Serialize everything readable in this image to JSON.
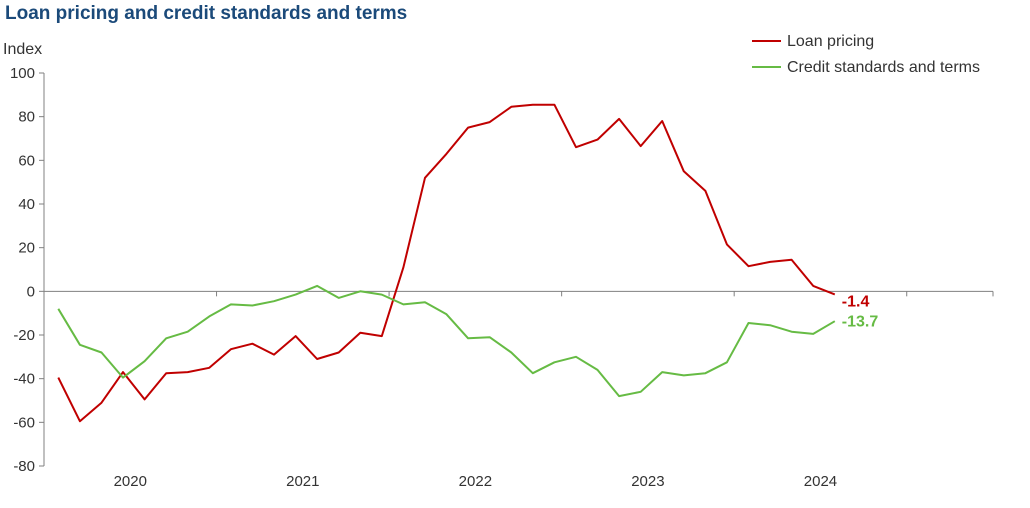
{
  "chart_data": {
    "type": "line",
    "title": "Loan pricing and credit standards and terms",
    "ylabel": "Index",
    "xlabel": "",
    "ylim": [
      -80,
      100
    ],
    "yticks": [
      100,
      80,
      60,
      40,
      20,
      0,
      -20,
      -40,
      -60,
      -80
    ],
    "xlim": [
      2019.5,
      2025.0
    ],
    "x_tick_labels": [
      {
        "label": "2020",
        "x": 2020.0
      },
      {
        "label": "2021",
        "x": 2021.0
      },
      {
        "label": "2022",
        "x": 2022.0
      },
      {
        "label": "2023",
        "x": 2023.0
      },
      {
        "label": "2024",
        "x": 2024.0
      }
    ],
    "year_boundaries": [
      2019.5,
      2020.5,
      2021.5,
      2022.5,
      2023.5,
      2024.5,
      2025.0
    ],
    "x": [
      2019.583,
      2019.708,
      2019.833,
      2019.958,
      2020.083,
      2020.208,
      2020.333,
      2020.458,
      2020.583,
      2020.708,
      2020.833,
      2020.958,
      2021.083,
      2021.208,
      2021.333,
      2021.458,
      2021.583,
      2021.708,
      2021.833,
      2021.958,
      2022.083,
      2022.208,
      2022.333,
      2022.458,
      2022.583,
      2022.708,
      2022.833,
      2022.958,
      2023.083,
      2023.208,
      2023.333,
      2023.458,
      2023.583,
      2023.708,
      2023.833,
      2023.958,
      2024.083
    ],
    "series": [
      {
        "name": "Loan pricing",
        "color": "#c00000",
        "end_label": "-1.4",
        "values": [
          -39.5,
          -59.5,
          -51,
          -37,
          -49.5,
          -37.5,
          -37,
          -35,
          -26.5,
          -24,
          -29,
          -20.5,
          -31,
          -28,
          -19,
          -20.5,
          11,
          52,
          63,
          75,
          77.5,
          84.5,
          85.5,
          85.5,
          66,
          69.5,
          79,
          66.5,
          78,
          55,
          46,
          21.5,
          11.5,
          13.5,
          14.5,
          2.5,
          -1.4
        ]
      },
      {
        "name": "Credit standards and terms",
        "color": "#66bb44",
        "end_label": "-13.7",
        "values": [
          -8,
          -24.5,
          -28,
          -39.5,
          -32,
          -21.5,
          -18.5,
          -11.5,
          -6,
          -6.5,
          -4.5,
          -1.5,
          2.5,
          -3,
          0,
          -1.5,
          -6,
          -5,
          -10.5,
          -21.5,
          -21,
          -28,
          -37.5,
          -32.5,
          -30,
          -36,
          -48,
          -46,
          -37,
          -38.5,
          -37.5,
          -32.5,
          -14.5,
          -15.5,
          -18.5,
          -19.5,
          -13.7
        ]
      }
    ],
    "legend_position": "top-right",
    "grid": false
  }
}
